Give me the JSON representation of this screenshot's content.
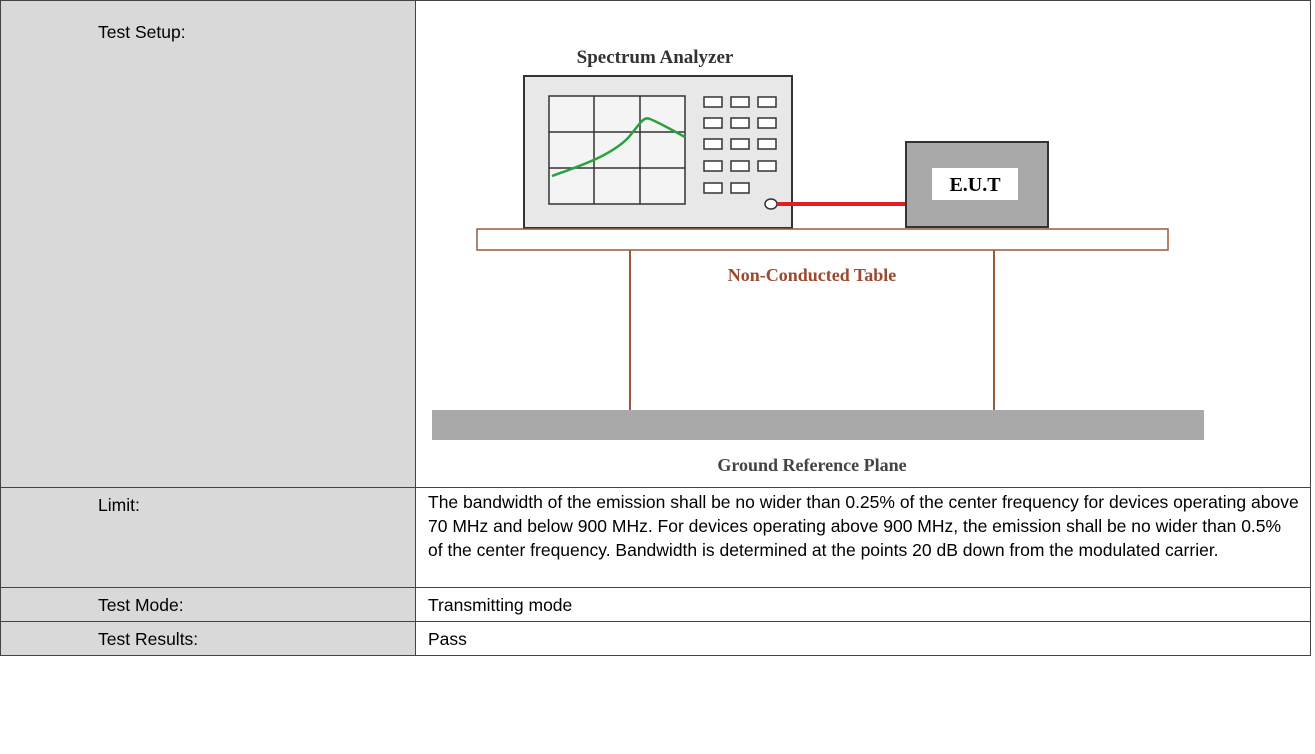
{
  "table": {
    "rows": [
      {
        "label": "Test Setup:",
        "diagram": {
          "title": "Spectrum Analyzer",
          "eut": "E.U.T",
          "table_label": "Non-Conducted Table",
          "ground_label": "Ground Reference Plane"
        }
      },
      {
        "label": "Limit:",
        "text": "The bandwidth of the emission shall be no wider than 0.25% of the center frequency for devices operating above 70 MHz and below 900 MHz.  For devices operating above 900 MHz, the emission shall be no wider than 0.5% of the center frequency.  Bandwidth is determined at the points 20 dB down from the modulated carrier."
      },
      {
        "label": "Test Mode:",
        "text": "Transmitting mode"
      },
      {
        "label": "Test Results:",
        "text": "Pass"
      }
    ]
  }
}
